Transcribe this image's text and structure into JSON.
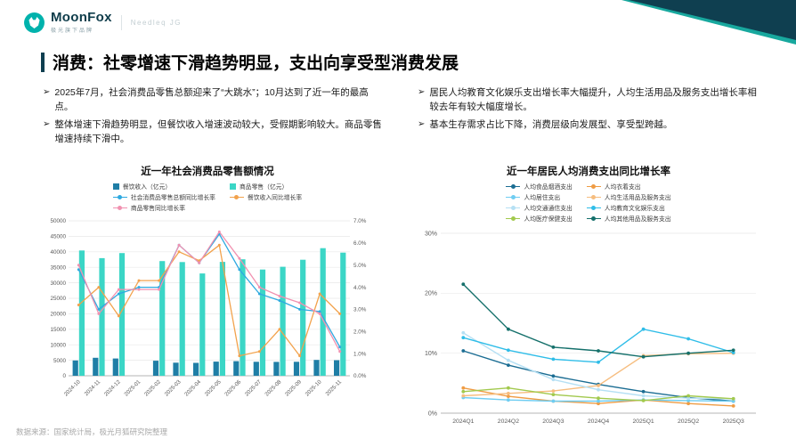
{
  "header": {
    "brand": "MoonFox",
    "brand_sub": "极光旗下品牌",
    "brand_secondary": "Needleq JG"
  },
  "bullet_marker": "➢",
  "title": "消费：社零增速下滑趋势明显，支出向享受型消费发展",
  "bullets": {
    "left": [
      "2025年7月，社会消费品零售总额迎来了“大跳水”；10月达到了近一年的最高点。",
      "整体增速下滑趋势明显，但餐饮收入增速波动较大，受假期影响较大。商品零售增速持续下滑中。"
    ],
    "right": [
      "居民人均教育文化娱乐支出增长率大幅提升，人均生活用品及服务支出增长率相较去年有较大幅度增长。",
      "基本生存需求占比下降，消费层级向发展型、享受型跨越。"
    ]
  },
  "footer": {
    "source": "数据来源：国家统计局，极光月狐研究院整理"
  },
  "colors": {
    "brand_teal": "#18a89e",
    "corner_dark": "#0f3f50",
    "title_bar": "#0f3f50"
  },
  "chart_data": [
    {
      "type": "bar",
      "subtype": "combo-bar-line",
      "title": "近一年社会消费品零售额情况",
      "categories": [
        "2024-10",
        "2024-11",
        "2024-12",
        "2025-01",
        "2025-02",
        "2025-03",
        "2025-04",
        "2025-05",
        "2025-06",
        "2025-07",
        "2025-08",
        "2025-09",
        "2025-10",
        "2025-11"
      ],
      "bar_series": [
        {
          "name": "餐饮收入（亿元）",
          "color": "#1f7ea6",
          "axis": "left",
          "values": [
            4952,
            5802,
            5585,
            null,
            4865,
            4235,
            4167,
            4578,
            4708,
            4504,
            4496,
            4522,
            5110,
            5021
          ]
        },
        {
          "name": "商品零售（亿元）",
          "color": "#3bd6c6",
          "axis": "left",
          "values": [
            40444,
            37961,
            39587,
            null,
            37000,
            36705,
            33007,
            36748,
            37579,
            34276,
            35172,
            37449,
            41181,
            39746
          ]
        }
      ],
      "line_series": [
        {
          "name": "社会消费品零售总额同比增长率",
          "color": "#2ea9e0",
          "axis": "right",
          "values": [
            4.8,
            3.0,
            3.7,
            4.0,
            4.0,
            5.9,
            5.1,
            6.4,
            4.8,
            3.7,
            3.4,
            3.0,
            2.9,
            1.3
          ]
        },
        {
          "name": "餐饮收入同比增长率",
          "color": "#f2a24c",
          "axis": "right",
          "values": [
            3.2,
            4.0,
            2.7,
            4.3,
            4.3,
            5.6,
            5.2,
            5.9,
            0.9,
            1.1,
            2.1,
            0.9,
            3.7,
            2.8
          ]
        },
        {
          "name": "商品零售同比增长率",
          "color": "#f191b0",
          "axis": "right",
          "values": [
            5.0,
            2.8,
            3.9,
            3.9,
            3.9,
            5.9,
            5.1,
            6.5,
            5.3,
            4.0,
            3.6,
            3.3,
            2.8,
            1.1
          ]
        }
      ],
      "y_left": {
        "min": 0,
        "max": 50000,
        "step": 5000
      },
      "y_right": {
        "min": 0,
        "max": 7,
        "step": 1,
        "suffix": "%"
      },
      "grid": true,
      "legend_position": "top"
    },
    {
      "type": "line",
      "title": "近一年居民人均消费支出同比增长率",
      "categories": [
        "2024Q1",
        "2024Q2",
        "2024Q3",
        "2024Q4",
        "2025Q1",
        "2025Q2",
        "2025Q3"
      ],
      "series": [
        {
          "name": "人均食品烟酒支出",
          "color": "#1b6d93",
          "values": [
            10.4,
            8.0,
            6.2,
            4.8,
            3.6,
            2.6,
            2.0
          ]
        },
        {
          "name": "人均衣着支出",
          "color": "#ef9c44",
          "values": [
            4.2,
            2.8,
            2.0,
            1.6,
            2.2,
            1.6,
            1.2
          ]
        },
        {
          "name": "人均居住支出",
          "color": "#6fcdf2",
          "values": [
            2.6,
            2.2,
            2.0,
            2.0,
            2.2,
            2.1,
            2.0
          ]
        },
        {
          "name": "人均生活用品及服务支出",
          "color": "#f6bd7f",
          "values": [
            2.9,
            3.3,
            3.7,
            4.6,
            9.6,
            9.9,
            10.0
          ]
        },
        {
          "name": "人均交通通信支出",
          "color": "#b5e0f4",
          "values": [
            13.4,
            8.8,
            5.6,
            3.9,
            2.9,
            2.5,
            2.4
          ]
        },
        {
          "name": "人均教育文化娱乐支出",
          "color": "#2fbde8",
          "values": [
            12.6,
            10.5,
            9.0,
            8.5,
            14.0,
            12.4,
            10.1
          ]
        },
        {
          "name": "人均医疗保健支出",
          "color": "#a2c94d",
          "values": [
            3.6,
            4.2,
            3.1,
            2.5,
            2.1,
            2.9,
            2.4
          ]
        },
        {
          "name": "人均其他用品及服务支出",
          "color": "#15706b",
          "values": [
            21.5,
            14.0,
            11.0,
            10.4,
            9.4,
            10.0,
            10.5
          ]
        }
      ],
      "y": {
        "min": 0,
        "max": 30,
        "step": 10,
        "suffix": "%"
      },
      "grid": true,
      "legend_position": "top"
    }
  ]
}
